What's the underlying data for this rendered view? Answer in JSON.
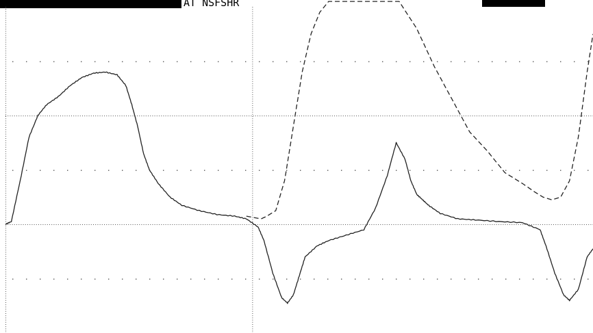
{
  "header": {
    "readout_1": "",
    "readout_2": "",
    "label": "AT NSFSHR",
    "readout_3": ""
  },
  "chart_data": {
    "type": "line",
    "title": "",
    "xlabel": "",
    "ylabel": "",
    "xlim": [
      0,
      10
    ],
    "ylim": [
      -2,
      4
    ],
    "grid": true,
    "grid_style": "dotted",
    "series": [
      {
        "style": "solid",
        "x": [
          0,
          0.1,
          0.25,
          0.4,
          0.55,
          0.7,
          0.9,
          1.1,
          1.3,
          1.5,
          1.7,
          1.9,
          2.05,
          2.15,
          2.25,
          2.35,
          2.45,
          2.6,
          2.8,
          3.0,
          3.3,
          3.6,
          3.9,
          4.1,
          4.3,
          4.4,
          4.55,
          4.7,
          4.8,
          4.9,
          5.0,
          5.1,
          5.3,
          5.5,
          5.8,
          6.1,
          6.3,
          6.5,
          6.65,
          6.8,
          6.9,
          7.0,
          7.1,
          7.2,
          7.4,
          7.7,
          8.0,
          8.4,
          8.8,
          9.1,
          9.2,
          9.35,
          9.5,
          9.6,
          9.75,
          9.9,
          10.0
        ],
        "y": [
          0,
          0.05,
          0.8,
          1.6,
          2.0,
          2.2,
          2.35,
          2.55,
          2.7,
          2.78,
          2.8,
          2.75,
          2.55,
          2.2,
          1.8,
          1.3,
          1.0,
          0.75,
          0.5,
          0.35,
          0.25,
          0.18,
          0.15,
          0.1,
          -0.05,
          -0.3,
          -0.9,
          -1.35,
          -1.45,
          -1.3,
          -0.95,
          -0.6,
          -0.4,
          -0.3,
          -0.2,
          -0.1,
          0.3,
          0.9,
          1.5,
          1.2,
          0.8,
          0.55,
          0.45,
          0.35,
          0.2,
          0.1,
          0.08,
          0.05,
          0.03,
          -0.1,
          -0.4,
          -0.9,
          -1.3,
          -1.4,
          -1.2,
          -0.6,
          -0.45
        ]
      },
      {
        "style": "dashed",
        "x": [
          4.1,
          4.35,
          4.45,
          4.6,
          4.75,
          4.9,
          5.05,
          5.2,
          5.35,
          5.5,
          5.6,
          5.7,
          5.75,
          5.85,
          6.0,
          6.2,
          6.45,
          6.7,
          7.0,
          7.3,
          7.6,
          7.9,
          8.2,
          8.5,
          8.8,
          9.0,
          9.15,
          9.3,
          9.45,
          9.6,
          9.75,
          9.9,
          10.0
        ],
        "y": [
          0.15,
          0.1,
          0.15,
          0.25,
          0.8,
          1.8,
          2.8,
          3.5,
          3.9,
          4.1,
          4.1,
          4.1,
          4.1,
          4.1,
          4.1,
          4.1,
          4.1,
          4.1,
          3.6,
          2.9,
          2.3,
          1.7,
          1.35,
          0.95,
          0.75,
          0.6,
          0.5,
          0.45,
          0.5,
          0.8,
          1.6,
          2.8,
          3.5
        ]
      }
    ]
  }
}
